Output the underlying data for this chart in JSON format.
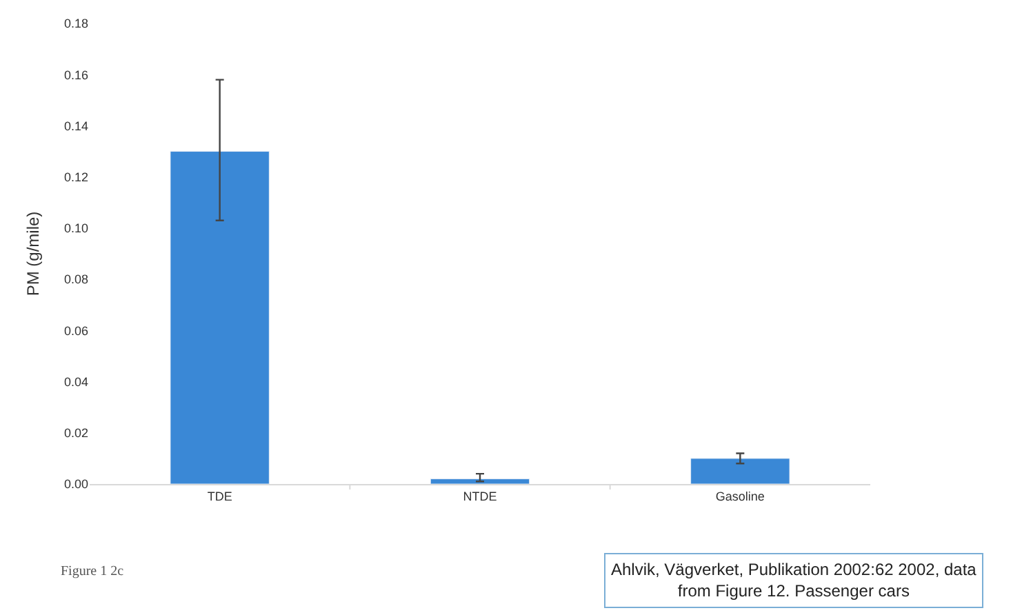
{
  "chart_data": {
    "type": "bar",
    "ylabel": "PM (g/mile)",
    "categories": [
      "TDE",
      "NTDE",
      "Gasoline"
    ],
    "values": [
      0.13,
      0.002,
      0.01
    ],
    "errors": [
      [
        0.103,
        0.158
      ],
      [
        0.001,
        0.004
      ],
      [
        0.008,
        0.012
      ]
    ],
    "color": "#3a88d6",
    "ylim": [
      0,
      0.18
    ],
    "yticks": [
      {
        "value": 0,
        "label": "0.00"
      },
      {
        "value": 0.02,
        "label": "0.02"
      },
      {
        "value": 0.04,
        "label": "0.04"
      },
      {
        "value": 0.06,
        "label": "0.06"
      },
      {
        "value": 0.08,
        "label": "0.08"
      },
      {
        "value": 0.1,
        "label": "0.10"
      },
      {
        "value": 0.12,
        "label": "0.12"
      },
      {
        "value": 0.14,
        "label": "0.14"
      },
      {
        "value": 0.16,
        "label": "0.16"
      },
      {
        "value": 0.18,
        "label": "0.18"
      }
    ],
    "annotations": [
      "Figure 1 2c",
      "Ahlvik, Vägverket, Publikation 2002:62 2002, data from Figure 12. Passenger cars"
    ]
  }
}
